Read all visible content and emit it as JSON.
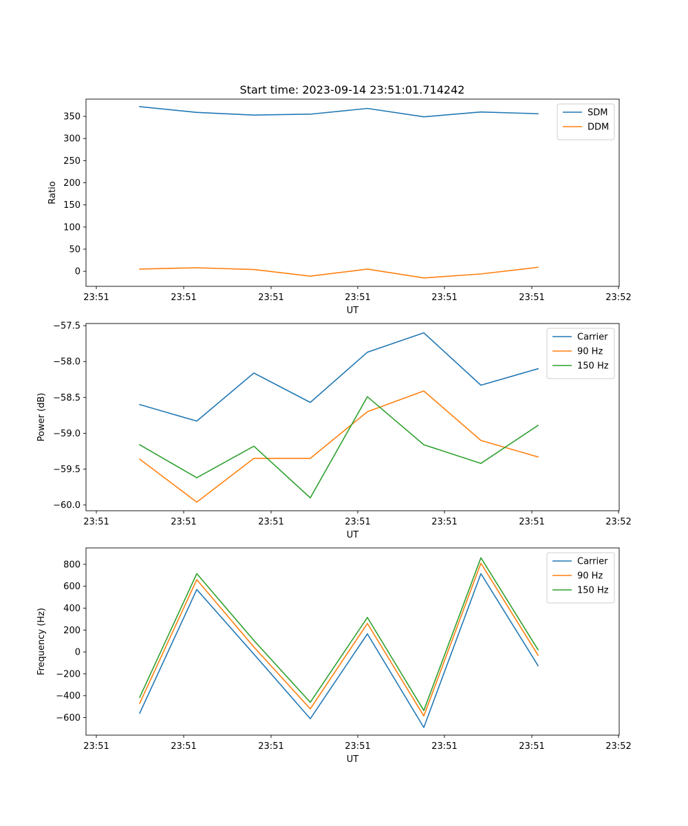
{
  "title": "Start time: 2023-09-14 23:51:01.714242",
  "colors": {
    "blue": "#1f77b4",
    "orange": "#ff7f0e",
    "green": "#2ca02c"
  },
  "chart_data": [
    {
      "type": "line",
      "title": "Start time: 2023-09-14 23:51:01.714242",
      "xlabel": "UT",
      "ylabel": "Ratio",
      "x_tick_labels": [
        "23:51",
        "23:51",
        "23:51",
        "23:51",
        "23:51",
        "23:51",
        "23:52"
      ],
      "ylim": [
        -34,
        389
      ],
      "yticks": [
        0,
        50,
        100,
        150,
        200,
        250,
        300,
        350
      ],
      "legend_position": "top-right",
      "series": [
        {
          "name": "SDM",
          "color": "#1f77b4",
          "values": [
            372,
            359,
            353,
            355,
            368,
            349,
            360,
            356
          ]
        },
        {
          "name": "DDM",
          "color": "#ff7f0e",
          "values": [
            5,
            8,
            4,
            -11,
            5,
            -15,
            -6,
            9
          ]
        }
      ]
    },
    {
      "type": "line",
      "title": "",
      "xlabel": "UT",
      "ylabel": "Power (dB)",
      "x_tick_labels": [
        "23:51",
        "23:51",
        "23:51",
        "23:51",
        "23:51",
        "23:51",
        "23:52"
      ],
      "ylim": [
        -60.08,
        -57.47
      ],
      "yticks": [
        -60.0,
        -59.5,
        -59.0,
        -58.5,
        -58.0,
        -57.5
      ],
      "legend_position": "top-right",
      "series": [
        {
          "name": "Carrier",
          "color": "#1f77b4",
          "values": [
            -58.6,
            -58.83,
            -58.16,
            -58.57,
            -57.87,
            -57.6,
            -58.33,
            -58.1
          ]
        },
        {
          "name": "90 Hz",
          "color": "#ff7f0e",
          "values": [
            -59.36,
            -59.96,
            -59.35,
            -59.35,
            -58.7,
            -58.41,
            -59.1,
            -59.33
          ]
        },
        {
          "name": "150 Hz",
          "color": "#2ca02c",
          "values": [
            -59.16,
            -59.62,
            -59.18,
            -59.9,
            -58.49,
            -59.16,
            -59.42,
            -58.89
          ]
        }
      ]
    },
    {
      "type": "line",
      "title": "",
      "xlabel": "UT",
      "ylabel": "Frequency (Hz)",
      "x_tick_labels": [
        "23:51",
        "23:51",
        "23:51",
        "23:51",
        "23:51",
        "23:51",
        "23:52"
      ],
      "ylim": [
        -760,
        950
      ],
      "yticks": [
        -600,
        -400,
        -200,
        0,
        200,
        400,
        600,
        800
      ],
      "legend_position": "top-right",
      "series": [
        {
          "name": "Carrier",
          "color": "#1f77b4",
          "values": [
            -560,
            570,
            -20,
            -610,
            165,
            -690,
            715,
            -125
          ]
        },
        {
          "name": "90 Hz",
          "color": "#ff7f0e",
          "values": [
            -470,
            660,
            45,
            -520,
            260,
            -585,
            810,
            -30
          ]
        },
        {
          "name": "150 Hz",
          "color": "#2ca02c",
          "values": [
            -415,
            715,
            105,
            -460,
            315,
            -535,
            860,
            20
          ]
        }
      ]
    }
  ]
}
